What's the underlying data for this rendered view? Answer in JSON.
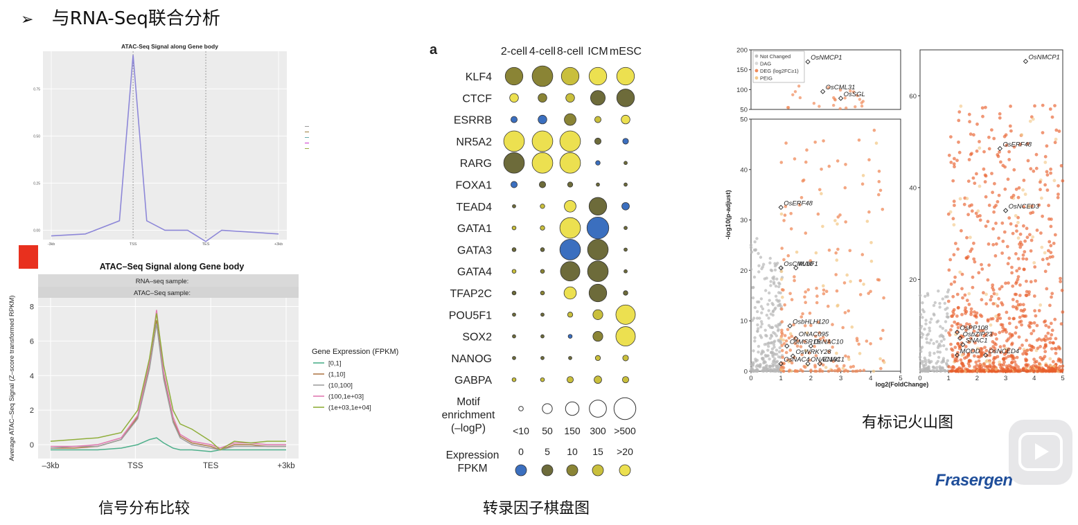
{
  "heading": {
    "marker": "➢",
    "text": "与RNA-Seq联合分析"
  },
  "captions": {
    "signal": "信号分布比较",
    "tf": "转录因子棋盘图",
    "volcano": "有标记火山图"
  },
  "logo": "Frasergen",
  "colors": {
    "accent_red": "#e8301e",
    "logo_blue": "#1f4e9a"
  },
  "chart_data": [
    {
      "id": "atac_top",
      "type": "line",
      "title": "ATAC-Seq Signal along Gene body",
      "x_tick_labels": [
        "-3kb",
        "TSS",
        "TES",
        "+3kb"
      ],
      "y_ticks": [
        0.0,
        0.25,
        0.5,
        0.75
      ],
      "ylim": [
        -0.05,
        0.95
      ],
      "series": [
        {
          "values": [
            -0.03,
            -0.02,
            0.05,
            0.93,
            0.05,
            0.0,
            0.0,
            -0.06,
            0.0,
            -0.02
          ]
        }
      ],
      "grid": true
    },
    {
      "id": "atac_bottom",
      "type": "line",
      "title": "ATAC–Seq Signal along Gene body",
      "strip_labels": [
        "RNA–seq sample:",
        "ATAC–Seq sample:"
      ],
      "ylabel": "Average ATAC–Seq Signal (Z–score transformed RPKM)",
      "x_tick_labels": [
        "–3kb",
        "TSS",
        "TES",
        "+3kb"
      ],
      "y_ticks": [
        0,
        2,
        4,
        6,
        8
      ],
      "ylim": [
        -0.8,
        8.5
      ],
      "legend_title": "Gene Expression (FPKM)",
      "legend_position": "right",
      "x_positions": [
        0.0,
        0.1,
        0.2,
        0.3,
        0.37,
        0.42,
        0.45,
        0.48,
        0.52,
        0.55,
        0.6,
        0.68,
        0.72,
        0.78,
        0.85,
        0.92,
        1.0
      ],
      "series": [
        {
          "name": "[0,1]",
          "color": "#4daf8a",
          "values": [
            -0.3,
            -0.3,
            -0.3,
            -0.2,
            0.0,
            0.3,
            0.4,
            0.1,
            -0.2,
            -0.3,
            -0.3,
            -0.4,
            -0.3,
            -0.3,
            -0.3,
            -0.3,
            -0.3
          ]
        },
        {
          "name": "(1,10]",
          "color": "#b07a4a",
          "values": [
            -0.2,
            -0.2,
            -0.1,
            0.3,
            1.6,
            4.5,
            7.2,
            4.0,
            1.4,
            0.5,
            0.1,
            -0.1,
            -0.3,
            0.0,
            0.0,
            -0.1,
            -0.1
          ]
        },
        {
          "name": "(10,100]",
          "color": "#9e9e9e",
          "values": [
            -0.2,
            -0.1,
            -0.1,
            0.3,
            1.5,
            4.4,
            7.0,
            3.8,
            1.3,
            0.4,
            0.0,
            -0.2,
            -0.3,
            -0.1,
            -0.1,
            -0.1,
            -0.1
          ]
        },
        {
          "name": "(100,1e+03]",
          "color": "#e07ab0",
          "values": [
            -0.1,
            -0.1,
            0.0,
            0.4,
            1.7,
            4.8,
            7.8,
            4.2,
            1.6,
            0.6,
            0.2,
            0.0,
            -0.2,
            0.1,
            0.1,
            0.0,
            0.0
          ]
        },
        {
          "name": "(1e+03,1e+04]",
          "color": "#8fae3a",
          "values": [
            0.2,
            0.3,
            0.4,
            0.7,
            2.0,
            5.0,
            7.6,
            4.6,
            2.0,
            1.2,
            0.9,
            0.2,
            -0.3,
            0.2,
            0.1,
            0.2,
            0.2
          ]
        }
      ],
      "grid": true
    },
    {
      "id": "tf_dotplot",
      "type": "scatter",
      "panel_label": "a",
      "columns": [
        "2-cell",
        "4-cell",
        "8-cell",
        "ICM",
        "mESC"
      ],
      "rows": [
        "KLF4",
        "CTCF",
        "ESRRB",
        "NR5A2",
        "RARG",
        "FOXA1",
        "TEAD4",
        "GATA1",
        "GATA3",
        "GATA4",
        "TFAP2C",
        "POU5F1",
        "SOX2",
        "NANOG",
        "GABPA"
      ],
      "size_values": [
        [
          2.5,
          3,
          2.5,
          2.5,
          2.5
        ],
        [
          1,
          1,
          1,
          2,
          2.5
        ],
        [
          0.6,
          1,
          1.5,
          0.6,
          1
        ],
        [
          3,
          3,
          3,
          0.6,
          0.5
        ],
        [
          3,
          3,
          3,
          0.3,
          0.1
        ],
        [
          0.6,
          0.6,
          0.4,
          0.1,
          0.1
        ],
        [
          0.1,
          0.3,
          1.5,
          2.5,
          0.8
        ],
        [
          0.2,
          0.3,
          3,
          3.2,
          0.1
        ],
        [
          0.2,
          0.2,
          3,
          3,
          0.1
        ],
        [
          0.2,
          0.2,
          2.8,
          3,
          0.1
        ],
        [
          0.2,
          0.2,
          1.6,
          2.5,
          0.3
        ],
        [
          0.1,
          0.1,
          0.4,
          1.2,
          2.8
        ],
        [
          0.1,
          0.1,
          0.2,
          1.2,
          2.8
        ],
        [
          0.1,
          0.1,
          0.1,
          0.4,
          0.5
        ],
        [
          0.2,
          0.2,
          0.6,
          0.8,
          0.6
        ]
      ],
      "color_values": [
        [
          10,
          10,
          15,
          20,
          20
        ],
        [
          20,
          10,
          15,
          5,
          5
        ],
        [
          0,
          0,
          10,
          15,
          20
        ],
        [
          20,
          20,
          20,
          5,
          0
        ],
        [
          5,
          20,
          20,
          0,
          5
        ],
        [
          0,
          5,
          5,
          5,
          5
        ],
        [
          5,
          15,
          20,
          5,
          0
        ],
        [
          15,
          15,
          20,
          0,
          5
        ],
        [
          5,
          5,
          2,
          5,
          5
        ],
        [
          15,
          10,
          5,
          5,
          5
        ],
        [
          5,
          10,
          20,
          5,
          5
        ],
        [
          5,
          5,
          15,
          15,
          20
        ],
        [
          5,
          5,
          0,
          10,
          20
        ],
        [
          5,
          5,
          5,
          15,
          15
        ],
        [
          15,
          15,
          15,
          15,
          15
        ]
      ],
      "size_legend": {
        "title": [
          "Motif",
          "enrichment",
          "(–logP)"
        ],
        "labels": [
          "<10",
          "50",
          "150",
          "300",
          ">500"
        ],
        "values": [
          0.3,
          1.2,
          1.8,
          2.4,
          3.2
        ]
      },
      "color_legend": {
        "title": [
          "Expression",
          "FPKM"
        ],
        "labels": [
          "0",
          "5",
          "10",
          "15",
          ">20"
        ],
        "values": [
          0,
          5,
          10,
          15,
          20
        ]
      },
      "color_scale": [
        "#3b6fbf",
        "#6d6b3a",
        "#8a8435",
        "#c9bf3c",
        "#ece050"
      ]
    },
    {
      "id": "volcano",
      "type": "scatter",
      "xlabel": "log2(FoldChange)",
      "ylabel": "-log10(p-adjust)",
      "legend_entries": [
        "Not Changed",
        "DAG",
        "DEG (log2FC≥1)",
        "PEIG"
      ],
      "legend_position": "top-left",
      "panels": [
        {
          "name": "left-top",
          "xlim": [
            0,
            5
          ],
          "ylim": [
            50,
            200
          ],
          "y_ticks": [
            50,
            100,
            150,
            200
          ]
        },
        {
          "name": "left-main",
          "xlim": [
            0,
            5
          ],
          "ylim": [
            0,
            50
          ],
          "x_ticks": [
            0,
            1,
            2,
            3,
            4,
            5
          ],
          "y_ticks": [
            0,
            10,
            20,
            30,
            40,
            50
          ]
        },
        {
          "name": "right-main",
          "xlim": [
            0,
            5
          ],
          "ylim": [
            0,
            70
          ],
          "x_ticks": [
            0,
            1,
            2,
            3,
            4,
            5
          ],
          "y_ticks": [
            20,
            40,
            60
          ]
        }
      ],
      "annotations": [
        {
          "panel": "left-top",
          "label": "OsNMCP1",
          "x": 1.9,
          "y": 170
        },
        {
          "panel": "left-top",
          "label": "OsCML31",
          "x": 2.4,
          "y": 95
        },
        {
          "panel": "left-top",
          "label": "OsSGL",
          "x": 3.0,
          "y": 78
        },
        {
          "panel": "left-main",
          "label": "OsERF48",
          "x": 1.0,
          "y": 32.5
        },
        {
          "panel": "left-main",
          "label": "OsCML10",
          "x": 1.0,
          "y": 20.5
        },
        {
          "panel": "left-main",
          "label": "MAIF1",
          "x": 1.5,
          "y": 20.5
        },
        {
          "panel": "left-main",
          "label": "OsbHLH120",
          "x": 1.3,
          "y": 9.0
        },
        {
          "panel": "left-main",
          "label": "ONAC095",
          "x": 1.5,
          "y": 6.5
        },
        {
          "panel": "left-main",
          "label": "OsMSR15",
          "x": 1.2,
          "y": 5.0
        },
        {
          "panel": "left-main",
          "label": "OsNAC10",
          "x": 2.0,
          "y": 5.0
        },
        {
          "panel": "left-main",
          "label": "OsWRKY28",
          "x": 1.4,
          "y": 3.0
        },
        {
          "panel": "left-main",
          "label": "OsNAC4",
          "x": 1.0,
          "y": 1.5
        },
        {
          "panel": "left-main",
          "label": "ONAC131",
          "x": 1.9,
          "y": 1.5
        },
        {
          "panel": "left-main",
          "label": "ENAC1",
          "x": 2.3,
          "y": 1.5
        },
        {
          "panel": "right-main",
          "label": "OsNMCP1",
          "x": 3.7,
          "y": 67.5
        },
        {
          "panel": "right-main",
          "label": "OsERF48",
          "x": 2.8,
          "y": 48.5
        },
        {
          "panel": "right-main",
          "label": "OsNCED3",
          "x": 3.0,
          "y": 35
        },
        {
          "panel": "right-main",
          "label": "OsPP108",
          "x": 1.3,
          "y": 8.5
        },
        {
          "panel": "right-main",
          "label": "OsbZIP23",
          "x": 1.4,
          "y": 7.2
        },
        {
          "panel": "right-main",
          "label": "SNAC1",
          "x": 1.5,
          "y": 5.8
        },
        {
          "panel": "right-main",
          "label": "MODD",
          "x": 1.3,
          "y": 3.5
        },
        {
          "panel": "right-main",
          "label": "OsNCED4",
          "x": 2.3,
          "y": 3.5
        }
      ]
    }
  ]
}
